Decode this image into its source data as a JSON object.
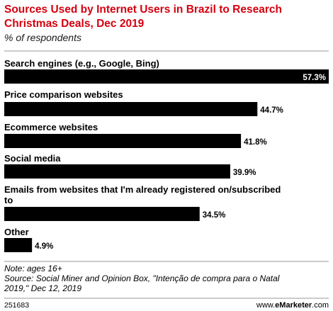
{
  "chart_data": {
    "type": "bar",
    "orientation": "horizontal",
    "title": "Sources Used by Internet Users in Brazil to Research Christmas Deals, Dec 2019",
    "title_lines": [
      "Sources Used by Internet Users in Brazil to Research",
      "Christmas Deals, Dec 2019"
    ],
    "subtitle": "% of respondents",
    "categories": [
      "Search engines (e.g., Google, Bing)",
      "Price comparison websites",
      "Ecommerce websites",
      "Social media",
      "Emails from websites that I'm already registered on/subscribed to",
      "Other"
    ],
    "category_lines": [
      [
        "Search engines (e.g., Google, Bing)"
      ],
      [
        "Price comparison websites"
      ],
      [
        "Ecommerce websites"
      ],
      [
        "Social media"
      ],
      [
        "Emails from websites that I'm already registered on/subscribed",
        "to"
      ],
      [
        "Other"
      ]
    ],
    "values": [
      57.3,
      44.7,
      41.8,
      39.9,
      34.5,
      4.9
    ],
    "value_labels": [
      "57.3%",
      "44.7%",
      "41.8%",
      "39.9%",
      "34.5%",
      "4.9%"
    ],
    "xlim": [
      0,
      57.3
    ],
    "bar_color": "#000000",
    "grid": false,
    "legend": "none"
  },
  "footer": {
    "note_lines": [
      "Note: ages 16+",
      "Source: Social Miner and Opinion Box, \"Intenção de compra para o Natal",
      "2019,\" Dec 12, 2019"
    ],
    "id": "251683",
    "brand_prefix": "www.",
    "brand_name": "eMarketer",
    "brand_suffix": ".com"
  },
  "colors": {
    "title": "#d5000f",
    "bars": "#000000",
    "rules": "#999999"
  }
}
